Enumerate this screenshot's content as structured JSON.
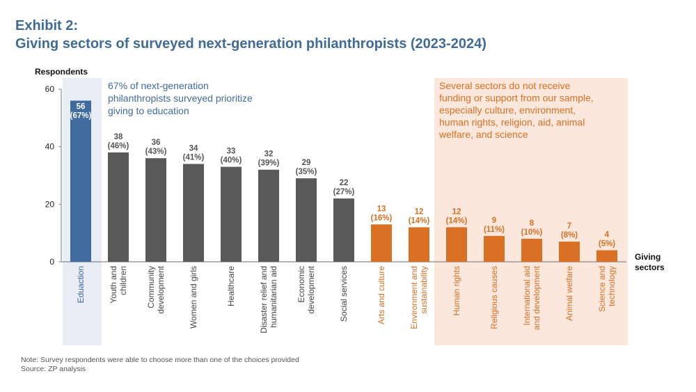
{
  "title_line1": "Exhibit 2:",
  "title_line2": "Giving sectors of surveyed next-generation philanthropists (2023-2024)",
  "note": "Note: Survey respondents were able to choose more than one of the choices provided",
  "source": "Source: ZP analysis",
  "colors": {
    "highlight": "#3f6b9f",
    "neutral": "#595959",
    "orange": "#d97023",
    "blue_band": "#e9edf6",
    "orange_band": "#fbe7dc",
    "title": "#3f6b97"
  },
  "chart_data": {
    "type": "bar",
    "ylabel": "Respondents",
    "xlabel": "Giving sectors",
    "ylim": [
      0,
      60
    ],
    "yticks": [
      0,
      20,
      40,
      60
    ],
    "grid": false,
    "categories": [
      [
        "Eduaction"
      ],
      [
        "Youth and",
        "children"
      ],
      [
        "Community",
        "development"
      ],
      [
        "Women and girls"
      ],
      [
        "Healthcare"
      ],
      [
        "Disaster relief and",
        "humanitarian aid"
      ],
      [
        "Economic",
        "development"
      ],
      [
        "Social services"
      ],
      [
        "Arts and culture"
      ],
      [
        "Environment and",
        "sustainability"
      ],
      [
        "Human rights"
      ],
      [
        "Religious causes"
      ],
      [
        "International aid",
        "and development"
      ],
      [
        "Animal welfare"
      ],
      [
        "Science and",
        "technology"
      ]
    ],
    "values": [
      56,
      38,
      36,
      34,
      33,
      32,
      29,
      22,
      13,
      12,
      12,
      9,
      8,
      7,
      4
    ],
    "percent_labels": [
      "(67%)",
      "(46%)",
      "(43%)",
      "(41%)",
      "(40%)",
      "(39%)",
      "(35%)",
      "(27%)",
      "(16%)",
      "(14%)",
      "(14%)",
      "(11%)",
      "(10%)",
      "(8%)",
      "(5%)"
    ],
    "bar_color_groups": [
      "highlight",
      "neutral",
      "neutral",
      "neutral",
      "neutral",
      "neutral",
      "neutral",
      "neutral",
      "orange",
      "orange",
      "orange",
      "orange",
      "orange",
      "orange",
      "orange"
    ],
    "annotations": [
      {
        "text": [
          "67% of next-generation",
          "philanthropists surveyed prioritize",
          "giving to education"
        ],
        "color": "highlight"
      },
      {
        "text": [
          "Several sectors do not receive",
          "funding or support from our sample,",
          "especially culture, environment,",
          "human rights, religion, aid, animal",
          "welfare, and science"
        ],
        "color": "orange"
      }
    ]
  }
}
